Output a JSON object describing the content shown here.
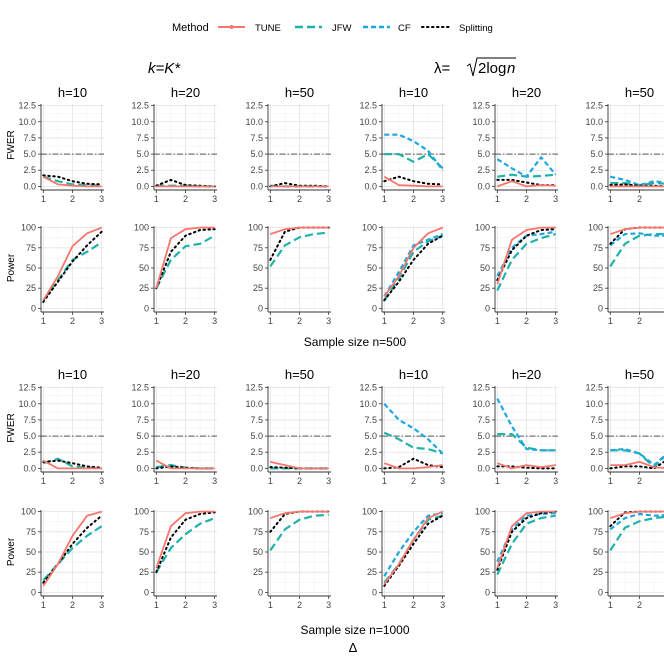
{
  "legend": {
    "title": "Method",
    "items": [
      {
        "name": "TUNE",
        "color": "#F8766D",
        "style": "solid"
      },
      {
        "name": "JFW",
        "color": "#20B2AA",
        "style": "longdash"
      },
      {
        "name": "CF",
        "color": "#1FA8E0",
        "style": "dashed"
      },
      {
        "name": "Splitting",
        "color": "#000000",
        "style": "dotted"
      }
    ]
  },
  "column_group_titles": {
    "left": "k=K*",
    "right_prefix": "λ=",
    "right_radicand": "2log",
    "right_var": "n"
  },
  "row_labels": {
    "fwer": "FWER",
    "power": "Power"
  },
  "section_titles": [
    "Sample size n=500",
    "Sample size n=1000"
  ],
  "x_axis_title": "Δ",
  "chart_data": {
    "type": "line",
    "x": [
      1,
      1.5,
      2,
      2.5,
      3
    ],
    "x_ticks": [
      1,
      2,
      3
    ],
    "fwer_ylim": [
      0,
      12.5
    ],
    "fwer_ticks": [
      0.0,
      2.5,
      5.0,
      7.5,
      10.0,
      12.5
    ],
    "fwer_tick_labels": [
      "0.0",
      "2.5",
      "5.0",
      "7.5",
      "10.0",
      "12.5"
    ],
    "fwer_reference_line": 5.0,
    "power_ylim": [
      0,
      100
    ],
    "power_ticks": [
      0,
      25,
      50,
      75,
      100
    ],
    "facet_titles": [
      "h=10",
      "h=20",
      "h=50",
      "h=10",
      "h=20",
      "h=50"
    ],
    "panels": [
      {
        "n": 500,
        "metric": "FWER",
        "col": 0,
        "series": {
          "TUNE": [
            1.5,
            0.3,
            0.1,
            0.0,
            0.0
          ],
          "JFW": [
            1.5,
            0.8,
            0.3,
            0.2,
            0.1
          ],
          "Splitting": [
            1.7,
            1.5,
            0.8,
            0.4,
            0.3
          ]
        }
      },
      {
        "n": 500,
        "metric": "FWER",
        "col": 1,
        "series": {
          "TUNE": [
            0.0,
            0.0,
            0.0,
            0.0,
            0.0
          ],
          "JFW": [
            0.1,
            0.1,
            0.1,
            0.0,
            0.0
          ],
          "Splitting": [
            0.1,
            1.0,
            0.2,
            0.1,
            0.0
          ]
        }
      },
      {
        "n": 500,
        "metric": "FWER",
        "col": 2,
        "series": {
          "TUNE": [
            0.0,
            0.0,
            0.0,
            0.0,
            0.0
          ],
          "JFW": [
            0.1,
            0.0,
            0.0,
            0.0,
            0.0
          ],
          "Splitting": [
            0.0,
            0.5,
            0.1,
            0.1,
            0.0
          ]
        }
      },
      {
        "n": 500,
        "metric": "FWER",
        "col": 3,
        "series": {
          "TUNE": [
            1.5,
            0.2,
            0.1,
            0.0,
            0.0
          ],
          "JFW": [
            5.0,
            5.0,
            3.8,
            5.0,
            2.8
          ],
          "CF": [
            8.0,
            8.0,
            7.0,
            5.5,
            2.5
          ],
          "Splitting": [
            0.8,
            1.5,
            0.8,
            0.4,
            0.3
          ]
        }
      },
      {
        "n": 500,
        "metric": "FWER",
        "col": 4,
        "series": {
          "TUNE": [
            0.0,
            0.8,
            0.0,
            0.2,
            0.1
          ],
          "JFW": [
            1.5,
            1.8,
            1.5,
            1.6,
            1.8
          ],
          "CF": [
            4.2,
            2.8,
            1.5,
            4.5,
            1.8
          ],
          "Splitting": [
            1.0,
            1.0,
            0.6,
            0.2,
            0.2
          ]
        }
      },
      {
        "n": 500,
        "metric": "FWER",
        "col": 5,
        "series": {
          "TUNE": [
            0.0,
            0.0,
            0.0,
            0.0,
            0.0
          ],
          "JFW": [
            0.5,
            0.5,
            0.2,
            0.5,
            0.4
          ],
          "CF": [
            1.5,
            1.0,
            0.2,
            0.8,
            0.5
          ],
          "Splitting": [
            0.2,
            0.3,
            0.1,
            0.1,
            0.0
          ]
        }
      },
      {
        "n": 500,
        "metric": "Power",
        "col": 0,
        "series": {
          "TUNE": [
            10,
            40,
            77,
            93,
            100
          ],
          "JFW": [
            10,
            35,
            60,
            70,
            82
          ],
          "Splitting": [
            8,
            33,
            58,
            78,
            95
          ]
        }
      },
      {
        "n": 500,
        "metric": "Power",
        "col": 1,
        "series": {
          "TUNE": [
            25,
            87,
            98,
            100,
            100
          ],
          "JFW": [
            25,
            60,
            77,
            80,
            90
          ],
          "Splitting": [
            25,
            70,
            90,
            97,
            98
          ]
        }
      },
      {
        "n": 500,
        "metric": "Power",
        "col": 2,
        "series": {
          "TUNE": [
            92,
            98,
            100,
            100,
            100
          ],
          "JFW": [
            52,
            78,
            88,
            92,
            94
          ],
          "Splitting": [
            60,
            95,
            100,
            100,
            100
          ]
        }
      },
      {
        "n": 500,
        "metric": "Power",
        "col": 3,
        "series": {
          "TUNE": [
            15,
            40,
            75,
            93,
            100
          ],
          "JFW": [
            10,
            37,
            70,
            83,
            90
          ],
          "CF": [
            15,
            45,
            78,
            85,
            92
          ],
          "Splitting": [
            10,
            33,
            60,
            80,
            90
          ]
        }
      },
      {
        "n": 500,
        "metric": "Power",
        "col": 4,
        "series": {
          "TUNE": [
            30,
            85,
            97,
            100,
            100
          ],
          "JFW": [
            22,
            60,
            80,
            87,
            92
          ],
          "CF": [
            40,
            75,
            90,
            92,
            95
          ],
          "Splitting": [
            35,
            72,
            90,
            97,
            98
          ]
        }
      },
      {
        "n": 500,
        "metric": "Power",
        "col": 5,
        "series": {
          "TUNE": [
            92,
            98,
            100,
            100,
            100
          ],
          "JFW": [
            52,
            80,
            90,
            92,
            92
          ],
          "CF": [
            78,
            92,
            93,
            90,
            90
          ],
          "Splitting": [
            80,
            98,
            100,
            100,
            100
          ]
        }
      },
      {
        "n": 1000,
        "metric": "FWER",
        "col": 0,
        "series": {
          "TUNE": [
            1.2,
            0.0,
            0.0,
            0.0,
            0.0
          ],
          "JFW": [
            0.8,
            1.5,
            0.3,
            0.1,
            0.0
          ],
          "Splitting": [
            1.0,
            1.2,
            0.8,
            0.3,
            0.1
          ]
        }
      },
      {
        "n": 1000,
        "metric": "FWER",
        "col": 1,
        "series": {
          "TUNE": [
            1.2,
            0.0,
            0.0,
            0.0,
            0.0
          ],
          "JFW": [
            0.2,
            0.5,
            0.1,
            0.0,
            0.0
          ],
          "Splitting": [
            0.0,
            0.3,
            0.1,
            0.0,
            0.0
          ]
        }
      },
      {
        "n": 1000,
        "metric": "FWER",
        "col": 2,
        "series": {
          "TUNE": [
            1.0,
            0.5,
            0.0,
            0.0,
            0.0
          ],
          "JFW": [
            0.0,
            0.0,
            0.0,
            0.0,
            0.0
          ],
          "Splitting": [
            0.2,
            0.1,
            0.0,
            0.0,
            0.0
          ]
        }
      },
      {
        "n": 1000,
        "metric": "FWER",
        "col": 3,
        "series": {
          "TUNE": [
            0.8,
            0.0,
            0.0,
            0.2,
            0.5
          ],
          "JFW": [
            5.5,
            4.5,
            3.2,
            3.0,
            2.3
          ],
          "CF": [
            10.0,
            7.5,
            6.2,
            4.5,
            2.3
          ],
          "Splitting": [
            0.0,
            0.2,
            1.5,
            0.5,
            0.2
          ]
        }
      },
      {
        "n": 1000,
        "metric": "FWER",
        "col": 4,
        "series": {
          "TUNE": [
            0.8,
            0.0,
            0.5,
            0.2,
            0.5
          ],
          "JFW": [
            5.3,
            5.3,
            3.2,
            2.8,
            2.8
          ],
          "CF": [
            10.8,
            6.5,
            3.0,
            2.8,
            2.8
          ],
          "Splitting": [
            0.3,
            0.3,
            0.1,
            0.0,
            0.0
          ]
        }
      },
      {
        "n": 1000,
        "metric": "FWER",
        "col": 5,
        "series": {
          "TUNE": [
            0.5,
            0.5,
            1.0,
            0.2,
            0.0
          ],
          "JFW": [
            2.8,
            2.8,
            2.3,
            0.2,
            2.5
          ],
          "CF": [
            2.8,
            3.0,
            2.3,
            0.5,
            2.5
          ],
          "Splitting": [
            0.0,
            0.3,
            0.3,
            0.0,
            1.5
          ]
        }
      },
      {
        "n": 1000,
        "metric": "Power",
        "col": 0,
        "series": {
          "TUNE": [
            8,
            35,
            70,
            95,
            100
          ],
          "JFW": [
            15,
            35,
            55,
            70,
            82
          ],
          "Splitting": [
            12,
            35,
            60,
            80,
            95
          ]
        }
      },
      {
        "n": 1000,
        "metric": "Power",
        "col": 1,
        "series": {
          "TUNE": [
            30,
            82,
            98,
            100,
            100
          ],
          "JFW": [
            25,
            55,
            72,
            85,
            92
          ],
          "Splitting": [
            25,
            68,
            90,
            97,
            99
          ]
        }
      },
      {
        "n": 1000,
        "metric": "Power",
        "col": 2,
        "series": {
          "TUNE": [
            92,
            98,
            100,
            100,
            100
          ],
          "JFW": [
            52,
            78,
            90,
            95,
            96
          ],
          "Splitting": [
            75,
            97,
            100,
            100,
            100
          ]
        }
      },
      {
        "n": 1000,
        "metric": "Power",
        "col": 3,
        "series": {
          "TUNE": [
            10,
            35,
            65,
            92,
            100
          ],
          "JFW": [
            12,
            35,
            65,
            90,
            95
          ],
          "CF": [
            20,
            50,
            75,
            95,
            98
          ],
          "Splitting": [
            8,
            33,
            60,
            85,
            95
          ]
        }
      },
      {
        "n": 1000,
        "metric": "Power",
        "col": 4,
        "series": {
          "TUNE": [
            30,
            82,
            98,
            100,
            100
          ],
          "JFW": [
            22,
            60,
            85,
            92,
            95
          ],
          "CF": [
            38,
            78,
            95,
            97,
            98
          ],
          "Splitting": [
            28,
            75,
            92,
            98,
            100
          ]
        }
      },
      {
        "n": 1000,
        "metric": "Power",
        "col": 5,
        "series": {
          "TUNE": [
            92,
            98,
            100,
            100,
            100
          ],
          "JFW": [
            52,
            80,
            88,
            92,
            94
          ],
          "CF": [
            78,
            92,
            97,
            95,
            96
          ],
          "Splitting": [
            82,
            99,
            100,
            100,
            100
          ]
        }
      }
    ]
  }
}
